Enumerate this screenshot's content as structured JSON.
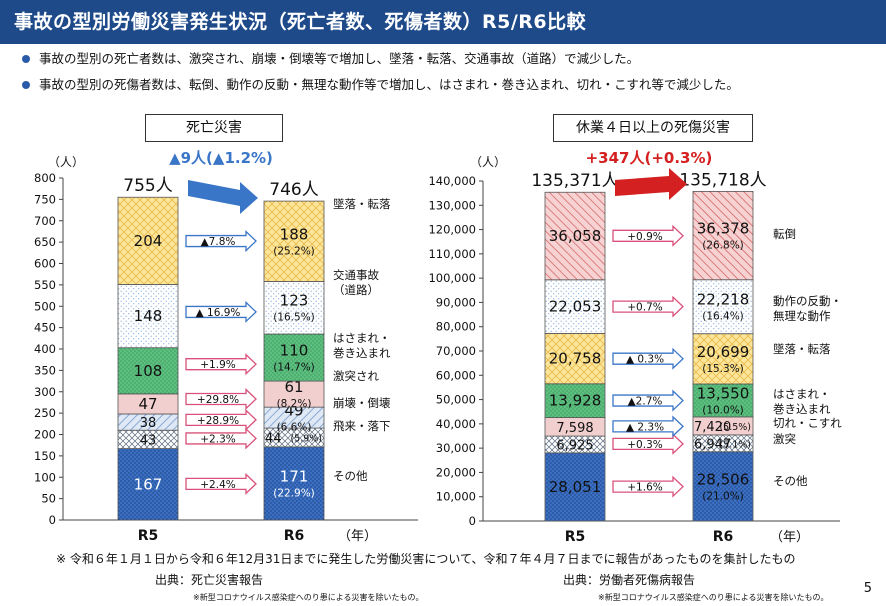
{
  "header": {
    "title": "事故の型別労働災害発生状況（死亡者数、死傷者数）R5/R6比較"
  },
  "bullets": [
    "事故の型別の死亡者数は、激突され、崩壊・倒壊等で増加し、墜落・転落、交通事故（道路）で減少した。",
    "事故の型別の死傷者数は、転倒、動作の反動・無理な動作等で増加し、はさまれ・巻き込まれ、切れ・こすれ等で減少した。"
  ],
  "chart_data": [
    {
      "type": "bar",
      "stacked": true,
      "title": "死亡災害",
      "unit_label": "（人）",
      "xlabel": "（年）",
      "categories": [
        "R5",
        "R6"
      ],
      "ylim": [
        0,
        800
      ],
      "yticks": [
        "0",
        "50",
        "100",
        "150",
        "200",
        "250",
        "300",
        "350",
        "400",
        "450",
        "500",
        "550",
        "600",
        "650",
        "700",
        "750",
        "800"
      ],
      "change_label": "▲9人(▲1.2%)",
      "totals_text": [
        "755人",
        "746人"
      ],
      "series": [
        {
          "name": "その他",
          "values": [
            167,
            171
          ],
          "r6_share": "(22.9%)",
          "change": "+2.4%",
          "color": "#3a6fc4",
          "pattern": "dots-dark",
          "label_color": "#ffffff"
        },
        {
          "name": "飛来・落下",
          "values": [
            43,
            44
          ],
          "r6_share": "(5.9%)",
          "change": "+2.3%",
          "color": "#ffffff",
          "pattern": "check",
          "label_color": "#111111"
        },
        {
          "name": "崩壊・倒壊",
          "values": [
            38,
            49
          ],
          "r6_share": "(6.6%)",
          "change": "+28.9%",
          "color": "#d9e5f4",
          "pattern": "stripe-blue",
          "label_color": "#111111"
        },
        {
          "name": "激突され",
          "values": [
            47,
            61
          ],
          "r6_share": "(8.2%)",
          "change": "+29.8%",
          "color": "#f2cfcf",
          "pattern": "none",
          "label_color": "#111111"
        },
        {
          "name": "はさまれ・巻き込まれ",
          "values": [
            108,
            110
          ],
          "r6_share": "(14.7%)",
          "change": "+1.9%",
          "color": "#5cbf80",
          "pattern": "dots-green",
          "label_color": "#111111"
        },
        {
          "name": "交通事故（道路）",
          "values": [
            148,
            123
          ],
          "r6_share": "(16.5%)",
          "change": "▲ 16.9%",
          "color": "#ffffff",
          "pattern": "dots-light",
          "label_color": "#111111"
        },
        {
          "name": "墜落・転落",
          "values": [
            204,
            188
          ],
          "r6_share": "(25.2%)",
          "change": "▲7.8%",
          "color": "#fbe69a",
          "pattern": "lattice",
          "label_color": "#111111"
        }
      ],
      "legend_labels": [
        "その他",
        "飛来・落下",
        "崩壊・倒壊",
        "激突され",
        "はさまれ・\n巻き込まれ",
        "交通事故\n（道路）",
        "墜落・転落"
      ],
      "source": "出典：死亡災害報告"
    },
    {
      "type": "bar",
      "stacked": true,
      "title": "休業４日以上の死傷災害",
      "unit_label": "（人）",
      "xlabel": "（年）",
      "categories": [
        "R5",
        "R6"
      ],
      "ylim": [
        0,
        140000
      ],
      "yticks": [
        "0",
        "10,000",
        "20,000",
        "30,000",
        "40,000",
        "50,000",
        "60,000",
        "70,000",
        "80,000",
        "90,000",
        "100,000",
        "110,000",
        "120,000",
        "130,000",
        "140,000"
      ],
      "change_label": "+347人(+0.3%)",
      "totals_text": [
        "135,371人",
        "135,718人"
      ],
      "series": [
        {
          "name": "その他",
          "values": [
            28051,
            28506
          ],
          "values_text": [
            "28,051",
            "28,506"
          ],
          "r6_share": "(21.0%)",
          "change": "+1.6%",
          "color": "#3a6fc4",
          "pattern": "dots-dark",
          "label_color": "#111111"
        },
        {
          "name": "激突",
          "values": [
            6925,
            6947
          ],
          "values_text": [
            "6,925",
            "6,947"
          ],
          "r6_share": "(5.1%)",
          "change": "+0.3%",
          "color": "#ffffff",
          "pattern": "check",
          "label_color": "#111111"
        },
        {
          "name": "切れ・こすれ",
          "values": [
            7598,
            7420
          ],
          "values_text": [
            "7,598",
            "7,420"
          ],
          "r6_share": "(5.5%)",
          "change": "▲ 2.3%",
          "color": "#f2cfcf",
          "pattern": "none",
          "label_color": "#111111"
        },
        {
          "name": "はさまれ・巻き込まれ",
          "values": [
            13928,
            13550
          ],
          "values_text": [
            "13,928",
            "13,550"
          ],
          "r6_share": "(10.0%)",
          "change": "▲2.7%",
          "color": "#5cbf80",
          "pattern": "dots-green",
          "label_color": "#111111"
        },
        {
          "name": "墜落・転落",
          "values": [
            20758,
            20699
          ],
          "values_text": [
            "20,758",
            "20,699"
          ],
          "r6_share": "(15.3%)",
          "change": "▲ 0.3%",
          "color": "#fbe69a",
          "pattern": "lattice",
          "label_color": "#111111"
        },
        {
          "name": "動作の反動・無理な動作",
          "values": [
            22053,
            22218
          ],
          "values_text": [
            "22,053",
            "22,218"
          ],
          "r6_share": "(16.4%)",
          "change": "+0.7%",
          "color": "#ffffff",
          "pattern": "dots-light",
          "label_color": "#111111"
        },
        {
          "name": "転倒",
          "values": [
            36058,
            36378
          ],
          "values_text": [
            "36,058",
            "36,378"
          ],
          "r6_share": "(26.8%)",
          "change": "+0.9%",
          "color": "#f4c9c9",
          "pattern": "diag-red",
          "label_color": "#111111"
        }
      ],
      "legend_labels": [
        "その他",
        "激突",
        "切れ・こすれ",
        "はさまれ・\n巻き込まれ",
        "墜落・転落",
        "動作の反動・\n無理な動作",
        "転倒"
      ],
      "source": "出典：労働者死傷病報告"
    }
  ],
  "footnote": "※ 令和６年１月１日から令和６年12月31日までに発生した労働災害について、令和７年４月７日までに報告があったものを集計したもの",
  "small_note": "※新型コロナウイルス感染症へのり患による災害を除いたもの。",
  "page_number": "5",
  "colors": {
    "header_bg": "#1e4a8a",
    "decrease": "#3a76c8",
    "increase": "#d42020"
  }
}
